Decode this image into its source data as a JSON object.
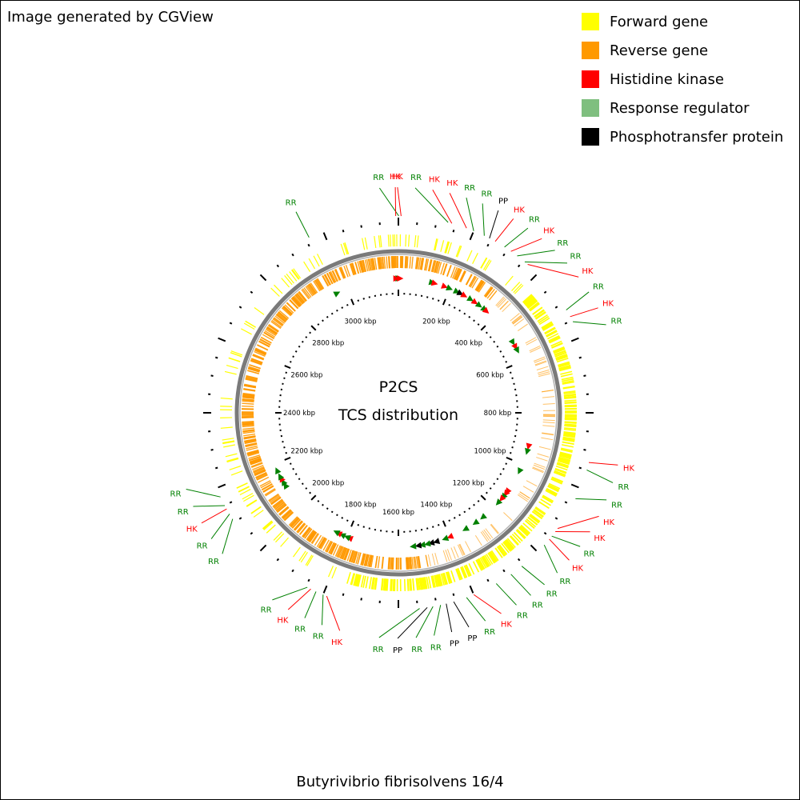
{
  "credit": "Image generated by CGView",
  "legend": [
    {
      "label": "Forward gene",
      "color": "#FFFF00"
    },
    {
      "label": "Reverse gene",
      "color": "#FF9900"
    },
    {
      "label": "Histidine kinase",
      "color": "#FF0000"
    },
    {
      "label": "Response regulator",
      "color": "#7FBF7F"
    },
    {
      "label": "Phosphotransfer protein",
      "color": "#000000"
    }
  ],
  "organism": "Butyrivibrio fibrisolvens 16/4",
  "map": {
    "title_line1": "P2CS",
    "title_line2": "TCS distribution",
    "genome_length_kbp": 3200,
    "tick_labels": [
      "200 kbp",
      "400 kbp",
      "600 kbp",
      "800 kbp",
      "1000 kbp",
      "1200 kbp",
      "1400 kbp",
      "1600 kbp",
      "1800 kbp",
      "2000 kbp",
      "2200 kbp",
      "2400 kbp",
      "2600 kbp",
      "2800 kbp",
      "3000 kbp"
    ],
    "tick_label_positions_kbp": [
      200,
      400,
      600,
      800,
      1000,
      1200,
      1400,
      1600,
      1800,
      2000,
      2200,
      2400,
      2600,
      2800,
      3000
    ],
    "colors": {
      "forward": "#FFFF00",
      "reverse": "#FF9900",
      "hk": "#FF0000",
      "rr": "#008000",
      "pp": "#000000",
      "backbone": "#808080"
    },
    "features": [
      {
        "type": "RR",
        "pos_kbp": 1,
        "label": "RR"
      },
      {
        "type": "HK",
        "pos_kbp": 7,
        "label": "HK"
      },
      {
        "type": "HK",
        "pos_kbp": -7,
        "label": "HK"
      },
      {
        "type": "RR",
        "pos_kbp": 130,
        "label": "RR"
      },
      {
        "type": "HK",
        "pos_kbp": 140,
        "label": "HK"
      },
      {
        "type": "HK",
        "pos_kbp": 180,
        "label": "HK"
      },
      {
        "type": "RR",
        "pos_kbp": 200,
        "label": "RR"
      },
      {
        "type": "RR",
        "pos_kbp": 230,
        "label": "RR"
      },
      {
        "type": "PP",
        "pos_kbp": 245,
        "label": "PP"
      },
      {
        "type": "HK",
        "pos_kbp": 262,
        "label": "HK"
      },
      {
        "type": "RR",
        "pos_kbp": 290,
        "label": "RR"
      },
      {
        "type": "HK",
        "pos_kbp": 310,
        "label": "HK"
      },
      {
        "type": "RR",
        "pos_kbp": 330,
        "label": "RR"
      },
      {
        "type": "RR",
        "pos_kbp": 355,
        "label": "RR"
      },
      {
        "type": "HK",
        "pos_kbp": 365,
        "label": "HK"
      },
      {
        "type": "RR",
        "pos_kbp": 520,
        "label": "RR"
      },
      {
        "type": "HK",
        "pos_kbp": 540,
        "label": "HK"
      },
      {
        "type": "RR",
        "pos_kbp": 555,
        "label": "RR"
      },
      {
        "type": "HK",
        "pos_kbp": 930,
        "label": "HK"
      },
      {
        "type": "RR",
        "pos_kbp": 950,
        "label": "RR"
      },
      {
        "type": "RR",
        "pos_kbp": 1030,
        "label": "RR"
      },
      {
        "type": "HK",
        "pos_kbp": 1120,
        "label": "HK"
      },
      {
        "type": "HK",
        "pos_kbp": 1130,
        "label": "HK"
      },
      {
        "type": "RR",
        "pos_kbp": 1145,
        "label": "RR"
      },
      {
        "type": "HK",
        "pos_kbp": 1155,
        "label": "HK"
      },
      {
        "type": "RR",
        "pos_kbp": 1175,
        "label": "RR"
      },
      {
        "type": "RR",
        "pos_kbp": 1255,
        "label": "RR"
      },
      {
        "type": "RR",
        "pos_kbp": 1290,
        "label": "RR"
      },
      {
        "type": "RR",
        "pos_kbp": 1335,
        "label": "RR"
      },
      {
        "type": "HK",
        "pos_kbp": 1400,
        "label": "HK"
      },
      {
        "type": "RR",
        "pos_kbp": 1420,
        "label": "RR"
      },
      {
        "type": "PP",
        "pos_kbp": 1455,
        "label": "PP"
      },
      {
        "type": "PP",
        "pos_kbp": 1475,
        "label": "PP"
      },
      {
        "type": "RR",
        "pos_kbp": 1490,
        "label": "RR"
      },
      {
        "type": "RR",
        "pos_kbp": 1510,
        "label": "RR"
      },
      {
        "type": "PP",
        "pos_kbp": 1525,
        "label": "PP"
      },
      {
        "type": "RR",
        "pos_kbp": 1545,
        "label": "RR"
      },
      {
        "type": "HK",
        "pos_kbp": 1790,
        "label": "HK"
      },
      {
        "type": "RR",
        "pos_kbp": 1800,
        "label": "RR"
      },
      {
        "type": "RR",
        "pos_kbp": 1820,
        "label": "RR"
      },
      {
        "type": "HK",
        "pos_kbp": 1835,
        "label": "HK"
      },
      {
        "type": "RR",
        "pos_kbp": 1845,
        "label": "RR"
      },
      {
        "type": "RR",
        "pos_kbp": 2110,
        "label": "RR"
      },
      {
        "type": "RR",
        "pos_kbp": 2125,
        "label": "RR"
      },
      {
        "type": "HK",
        "pos_kbp": 2140,
        "label": "HK"
      },
      {
        "type": "RR",
        "pos_kbp": 2150,
        "label": "RR"
      },
      {
        "type": "RR",
        "pos_kbp": 2175,
        "label": "RR"
      },
      {
        "type": "RR",
        "pos_kbp": 2960,
        "label": "RR"
      }
    ]
  }
}
